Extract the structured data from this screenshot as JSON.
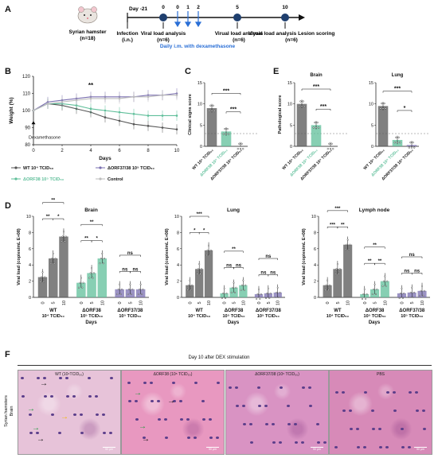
{
  "panels": {
    "A": "A",
    "B": "B",
    "C": "C",
    "D": "D",
    "E": "E",
    "F": "F"
  },
  "timeline": {
    "animal": "Syrian hamster",
    "animal_n": "(n=18)",
    "day_start": "Day -21",
    "infection": "Infection",
    "infection_route": "(i.n.)",
    "ticks": [
      "0",
      "0",
      "1",
      "2",
      "5",
      "10"
    ],
    "viral_load_0": "Viral load analysis",
    "viral_load_0_n": "(n=6)",
    "dex_text": "Daily i.m. with dexamethasone",
    "viral_load_5": "Virual load analysis",
    "viral_load_5_n": "(n=6)",
    "viral_load_10": "Virual load analysis Lesion scoring",
    "viral_load_10_n": "(n=6)"
  },
  "colors": {
    "wt": "#555555",
    "orf38": "#5fbf9a",
    "orf3738": "#7a6fb0",
    "control": "#bdbdbd",
    "dex_blue": "#2a6fd6"
  },
  "chart_data": [
    {
      "id": "B",
      "type": "line",
      "ylabel": "Weight (%)",
      "xlabel": "Days",
      "x": [
        0,
        1,
        2,
        3,
        4,
        5,
        6,
        7,
        8,
        9,
        10
      ],
      "ylim": [
        80,
        120
      ],
      "yticks": [
        "80",
        "90",
        "100",
        "110",
        "120"
      ],
      "xticks": [
        "0",
        "2",
        "4",
        "6",
        "8",
        "10"
      ],
      "annotation": "**",
      "dex_label": "Dexamethasone",
      "series": [
        {
          "name": "WT 10⁴ TCID₅₀",
          "key": "wt",
          "values": [
            100,
            104,
            103,
            101,
            99,
            96,
            94,
            92,
            91,
            90,
            89
          ]
        },
        {
          "name": "ΔORF38 10⁵ TCID₅₀",
          "key": "orf38",
          "values": [
            100,
            104,
            104,
            103,
            101,
            100,
            99,
            98,
            97,
            97,
            97
          ]
        },
        {
          "name": "ΔORF37/38 10⁵ TCID₅₀",
          "key": "orf3738",
          "values": [
            100,
            105,
            106,
            107,
            108,
            108,
            108,
            108,
            109,
            109,
            110
          ]
        },
        {
          "name": "Control",
          "key": "control",
          "values": [
            100,
            104,
            105,
            106,
            107,
            107,
            107,
            108,
            108,
            109,
            109
          ]
        }
      ]
    },
    {
      "id": "C",
      "type": "bar",
      "title": "",
      "ylabel": "Clinical signs score",
      "ylim": [
        0,
        15
      ],
      "yticks": [
        "0",
        "5",
        "10",
        "15"
      ],
      "categories": [
        "WT 10⁴ TCID₅₀",
        "ΔORF38 10⁵ TCID₅₀",
        "ΔORF37/38 10⁵ TCID₅₀"
      ],
      "values": [
        9,
        3.5,
        0
      ],
      "sig": [
        "***",
        "***"
      ]
    },
    {
      "id": "E1",
      "type": "bar",
      "title": "Brain",
      "ylabel": "Pathological score",
      "ylim": [
        0,
        15
      ],
      "yticks": [
        "0",
        "5",
        "10",
        "15"
      ],
      "categories": [
        "WT 10⁴ TCID₅₀",
        "ΔORF38 10⁵ TCID₅₀",
        "ΔORF37/38 10⁵ TCID₅₀"
      ],
      "values": [
        10,
        5,
        0
      ],
      "sig": [
        "***",
        "***"
      ]
    },
    {
      "id": "E2",
      "type": "bar",
      "title": "Lung",
      "ylabel": "",
      "ylim": [
        0,
        15
      ],
      "yticks": [
        "0",
        "5",
        "10",
        "15"
      ],
      "categories": [
        "WT 10⁴ TCID₅₀",
        "ΔORF38 10⁵ TCID₅₀",
        "ΔORF37/38 10⁵ TCID₅₀"
      ],
      "values": [
        9.5,
        1.5,
        0.3
      ],
      "sig": [
        "***",
        "*"
      ]
    },
    {
      "id": "D1",
      "type": "bar",
      "title": "Brain",
      "ylabel": "Viral load (copies/mL E+08)",
      "xlabel": "Days",
      "ylim": [
        0,
        10
      ],
      "yticks": [
        "0",
        "2",
        "4",
        "6",
        "8",
        "10"
      ],
      "day_ticks": [
        "0",
        "5",
        "10"
      ],
      "groups": [
        {
          "label": "WT",
          "dose": "10⁴ TCID₅₀",
          "key": "wt",
          "values": [
            2.5,
            4.8,
            7.5
          ]
        },
        {
          "label": "ΔORF38",
          "dose": "10⁵ TCID₅₀",
          "key": "orf38",
          "values": [
            1.8,
            3.0,
            4.8
          ]
        },
        {
          "label": "ΔORF37/38",
          "dose": "10⁵ TCID₅₀",
          "key": "orf3738",
          "values": [
            1.0,
            1.0,
            1.0
          ]
        }
      ],
      "sig": [
        [
          "**",
          "**",
          "*"
        ],
        [
          "**",
          "**",
          "*"
        ],
        [
          "ns",
          "ns",
          "ns"
        ]
      ]
    },
    {
      "id": "D2",
      "type": "bar",
      "title": "Lung",
      "ylabel": "Viral load (copies/mL E+08)",
      "xlabel": "Days",
      "ylim": [
        0,
        10
      ],
      "yticks": [
        "0",
        "2",
        "4",
        "6",
        "8",
        "10"
      ],
      "day_ticks": [
        "0",
        "5",
        "10"
      ],
      "groups": [
        {
          "label": "WT",
          "dose": "10⁴ TCID₅₀",
          "key": "wt",
          "values": [
            1.5,
            3.5,
            5.8
          ]
        },
        {
          "label": "ΔORF38",
          "dose": "10⁵ TCID₅₀",
          "key": "orf38",
          "values": [
            0.5,
            1.2,
            1.5
          ]
        },
        {
          "label": "ΔORF37/38",
          "dose": "10⁵ TCID₅₀",
          "key": "orf3738",
          "values": [
            0.4,
            0.5,
            0.6
          ]
        }
      ],
      "sig": [
        [
          "***",
          "*",
          "*"
        ],
        [
          "**",
          "ns",
          "ns"
        ],
        [
          "ns",
          "ns",
          "ns"
        ]
      ]
    },
    {
      "id": "D3",
      "type": "bar",
      "title": "Lymph node",
      "ylabel": "Viral load (copies/mL E+08)",
      "xlabel": "Days",
      "ylim": [
        0,
        10
      ],
      "yticks": [
        "0",
        "2",
        "4",
        "6",
        "8",
        "10"
      ],
      "day_ticks": [
        "0",
        "5",
        "10"
      ],
      "groups": [
        {
          "label": "WT",
          "dose": "10⁴ TCID₅₀",
          "key": "wt",
          "values": [
            1.5,
            3.5,
            6.5
          ]
        },
        {
          "label": "ΔORF38",
          "dose": "10⁵ TCID₅₀",
          "key": "orf38",
          "values": [
            0.4,
            1.0,
            2.0
          ]
        },
        {
          "label": "ΔORF37/38",
          "dose": "10⁵ TCID₅₀",
          "key": "orf3738",
          "values": [
            0.5,
            0.6,
            0.8
          ]
        }
      ],
      "sig": [
        [
          "***",
          "***",
          "**"
        ],
        [
          "**",
          "**",
          "**"
        ],
        [
          "ns",
          "ns",
          "ns"
        ]
      ]
    }
  ],
  "histology": {
    "title": "Day 10 after DEX stimulation",
    "row_label_1": "Syrian hamsters",
    "row_label_2": "Brain",
    "panels": [
      {
        "label": "WT (10⁴TCID₅₀)",
        "bg": "#e7c3d9"
      },
      {
        "label": "ΔORF38 (10⁵ TCID₅₀)",
        "bg": "#e898c0"
      },
      {
        "label": "ΔORF37/38 (10⁵ TCID₅₀)",
        "bg": "#d993c3"
      },
      {
        "label": "PBS",
        "bg": "#d78ab8"
      }
    ],
    "scale": "50 μm"
  }
}
